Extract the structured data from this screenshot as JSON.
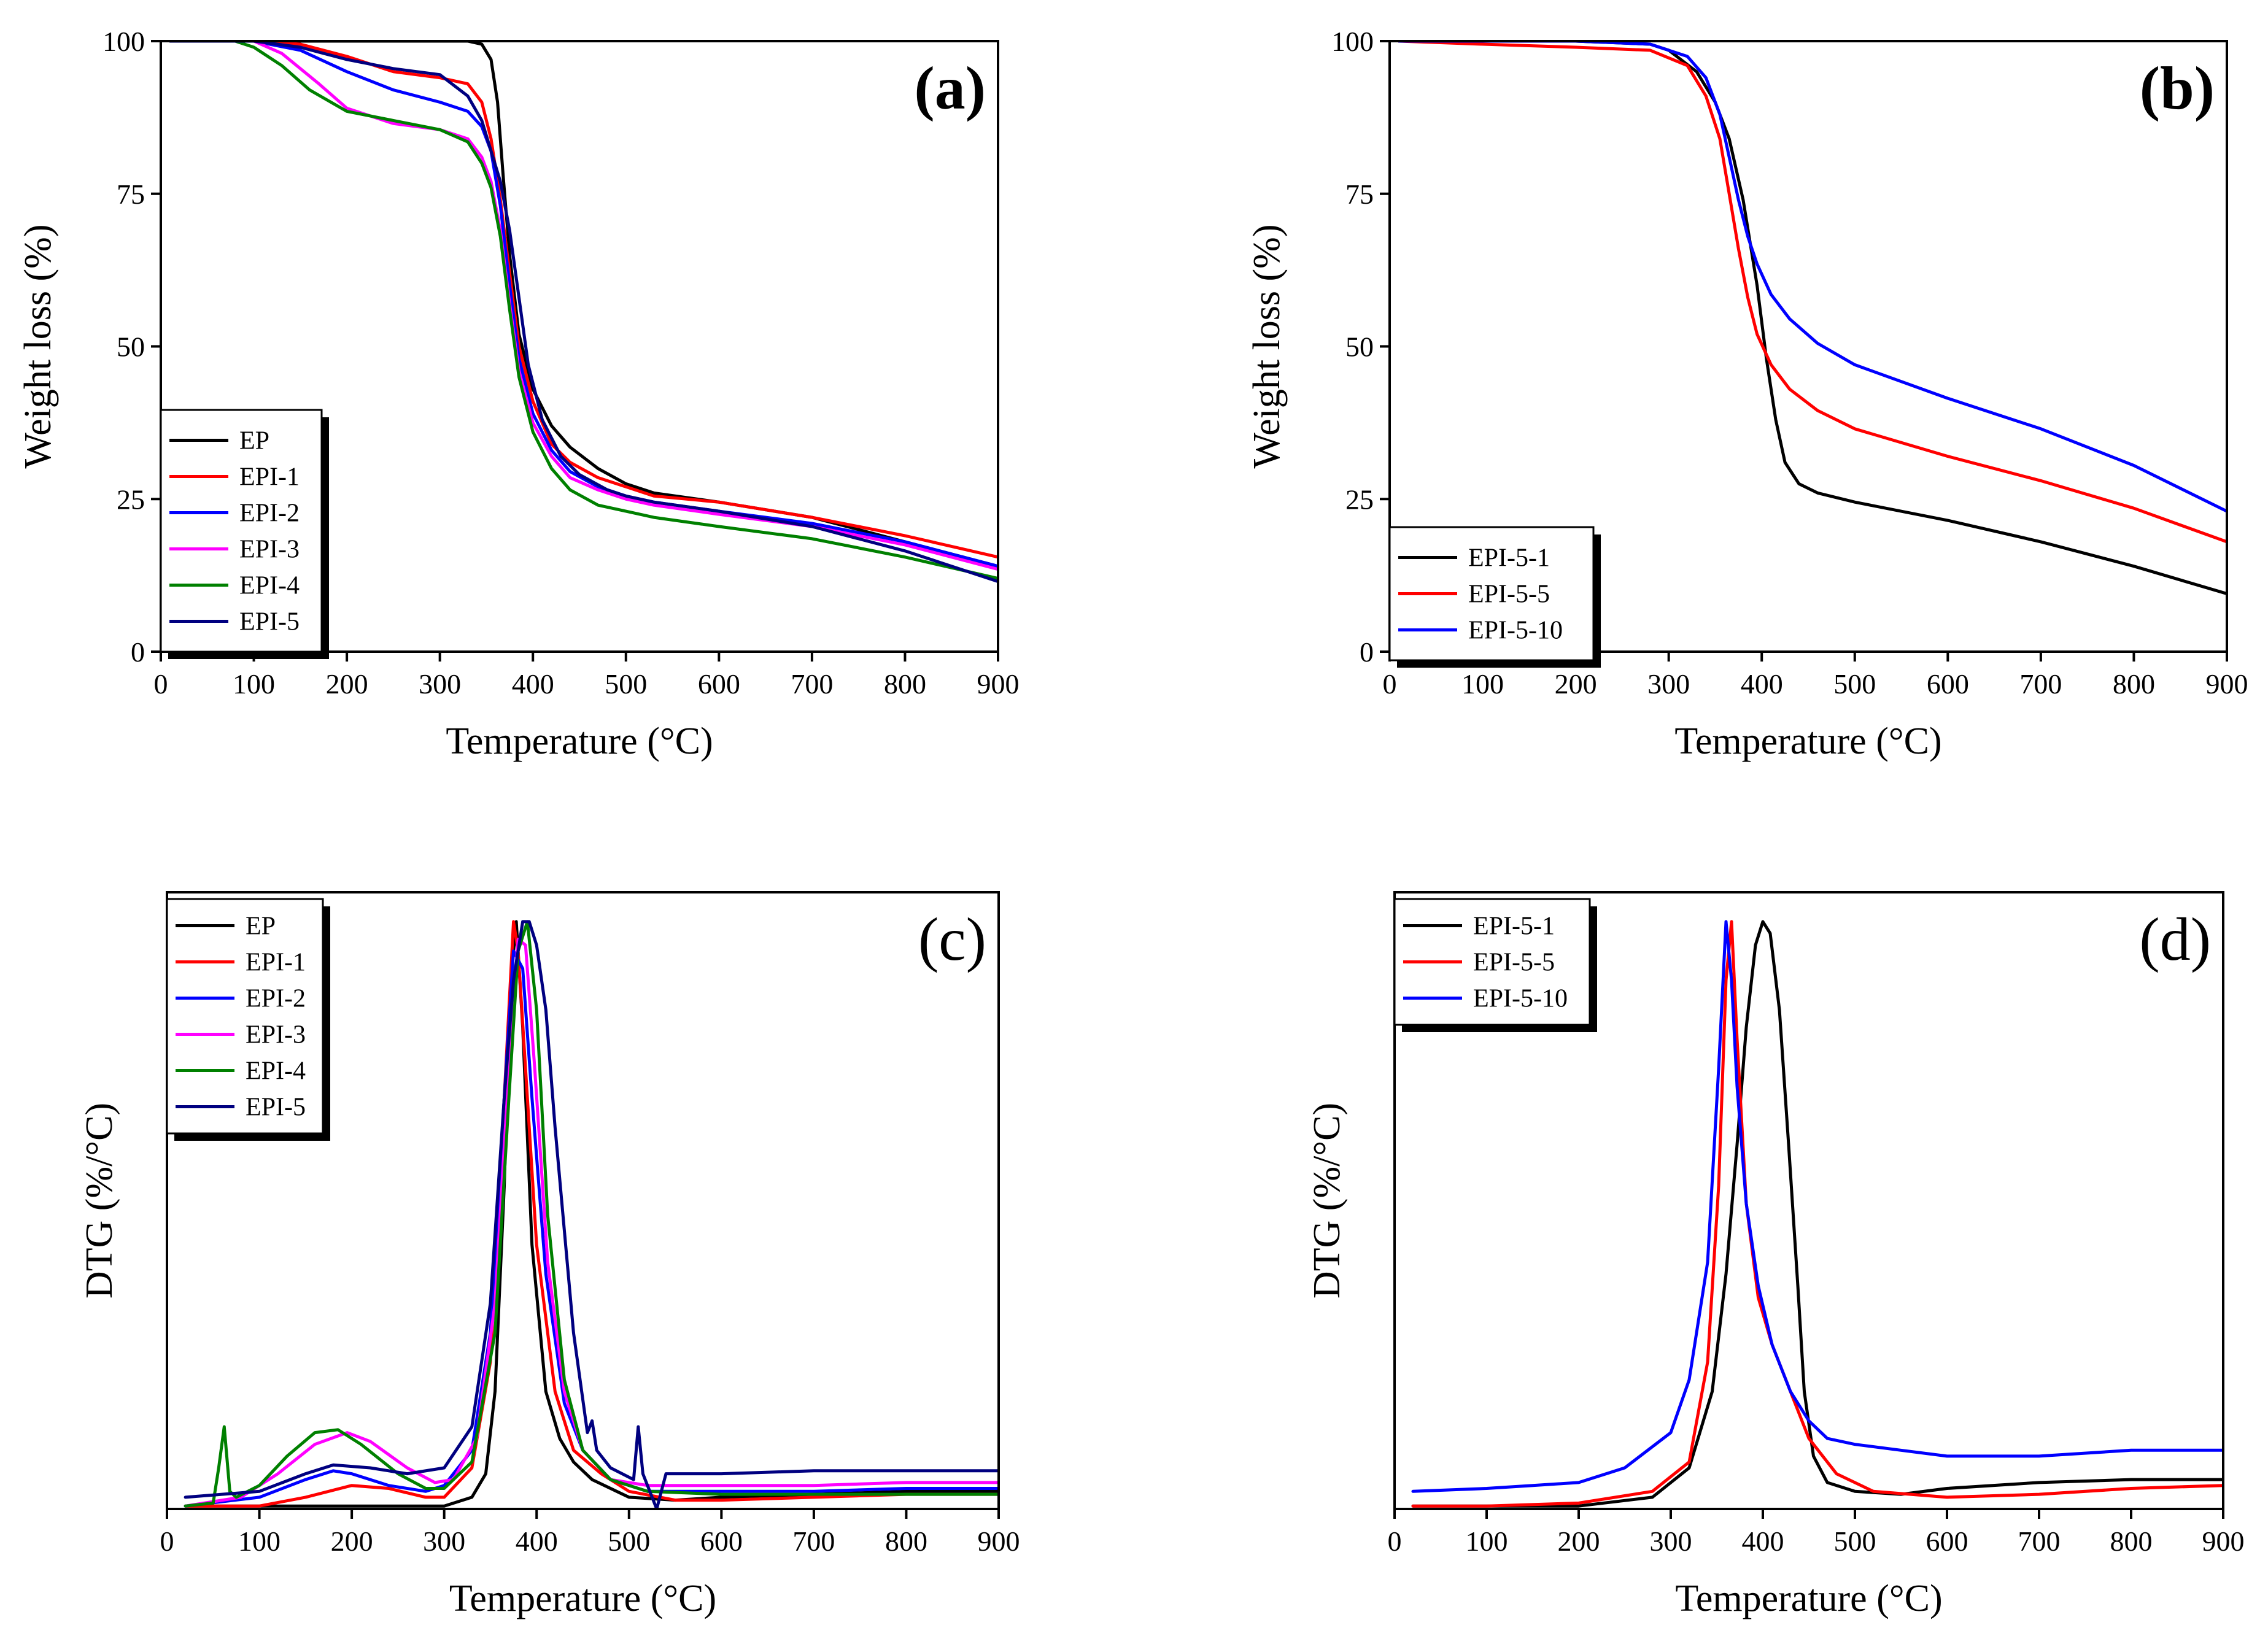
{
  "chart_data": [
    {
      "id": "a",
      "type": "line",
      "panel_label": "(a)",
      "title": "",
      "xlabel": "Temperature (°C)",
      "ylabel": "Weight loss (%)",
      "xlim": [
        0,
        900
      ],
      "ylim": [
        0,
        100
      ],
      "xticks": [
        0,
        100,
        200,
        300,
        400,
        500,
        600,
        700,
        800,
        900
      ],
      "yticks": [
        0,
        25,
        50,
        75,
        100
      ],
      "legend_position": "bottom-left",
      "series": [
        {
          "name": "EP",
          "color": "#000000",
          "x": [
            10,
            100,
            200,
            300,
            330,
            345,
            355,
            362,
            368,
            375,
            385,
            400,
            420,
            440,
            470,
            500,
            530,
            600,
            700,
            800,
            900
          ],
          "y": [
            100,
            100,
            100,
            100,
            100,
            99.5,
            97,
            90,
            78,
            65,
            52,
            43,
            37,
            33.5,
            30,
            27.5,
            26,
            24.5,
            22,
            18,
            14
          ]
        },
        {
          "name": "EPI-1",
          "color": "#ff0000",
          "x": [
            10,
            100,
            150,
            200,
            250,
            300,
            330,
            345,
            355,
            365,
            375,
            385,
            400,
            420,
            440,
            470,
            500,
            530,
            600,
            700,
            800,
            900
          ],
          "y": [
            100,
            100,
            99.5,
            97.5,
            95,
            94,
            93,
            90,
            84,
            74,
            62,
            50,
            41,
            34,
            31,
            28.5,
            27,
            25.5,
            24.5,
            22,
            19,
            15.5
          ]
        },
        {
          "name": "EPI-2",
          "color": "#0000ff",
          "x": [
            10,
            100,
            150,
            200,
            250,
            300,
            330,
            345,
            355,
            365,
            375,
            385,
            400,
            420,
            440,
            470,
            500,
            530,
            600,
            700,
            800,
            900
          ],
          "y": [
            100,
            100,
            98.5,
            95,
            92,
            90,
            88.5,
            86,
            82,
            73,
            60,
            48,
            39,
            33,
            29.5,
            27,
            25.5,
            24.5,
            23,
            21,
            18,
            14
          ]
        },
        {
          "name": "EPI-3",
          "color": "#ff00ff",
          "x": [
            10,
            100,
            130,
            170,
            200,
            250,
            300,
            330,
            345,
            355,
            365,
            375,
            385,
            400,
            420,
            440,
            470,
            500,
            530,
            600,
            700,
            800,
            900
          ],
          "y": [
            100,
            100,
            98,
            93,
            89,
            86.5,
            85.5,
            84,
            81,
            77,
            69,
            57,
            46,
            37.5,
            32,
            28.5,
            26.5,
            25,
            24,
            22.5,
            20.5,
            17.5,
            13.5
          ]
        },
        {
          "name": "EPI-4",
          "color": "#008000",
          "x": [
            10,
            80,
            100,
            130,
            160,
            200,
            250,
            300,
            330,
            345,
            355,
            365,
            375,
            385,
            400,
            420,
            440,
            470,
            500,
            530,
            600,
            700,
            800,
            900
          ],
          "y": [
            100,
            100,
            99,
            96,
            92,
            88.5,
            87,
            85.5,
            83.5,
            80,
            76,
            68,
            56,
            45,
            36,
            30,
            26.5,
            24,
            23,
            22,
            20.5,
            18.5,
            15.5,
            12
          ]
        },
        {
          "name": "EPI-5",
          "color": "#000080",
          "x": [
            10,
            100,
            150,
            200,
            250,
            300,
            330,
            345,
            355,
            365,
            375,
            385,
            395,
            410,
            430,
            450,
            480,
            500,
            530,
            600,
            700,
            800,
            900
          ],
          "y": [
            100,
            100,
            99,
            97,
            95.5,
            94.5,
            91,
            87,
            82,
            77,
            69,
            58,
            47,
            38,
            32,
            29,
            26.5,
            25.5,
            24.5,
            23,
            20.5,
            16.5,
            11.5
          ]
        }
      ]
    },
    {
      "id": "b",
      "type": "line",
      "panel_label": "(b)",
      "title": "",
      "xlabel": "Temperature (°C)",
      "ylabel": "Weight loss (%)",
      "xlim": [
        0,
        900
      ],
      "ylim": [
        0,
        100
      ],
      "xticks": [
        0,
        100,
        200,
        300,
        400,
        500,
        600,
        700,
        800,
        900
      ],
      "yticks": [
        0,
        25,
        50,
        75,
        100
      ],
      "legend_position": "bottom-left",
      "series": [
        {
          "name": "EPI-5-1",
          "color": "#000000",
          "x": [
            10,
            100,
            200,
            280,
            300,
            330,
            350,
            365,
            380,
            395,
            405,
            415,
            425,
            440,
            460,
            500,
            600,
            700,
            800,
            900
          ],
          "y": [
            100,
            100,
            100,
            99.5,
            98.5,
            95,
            90,
            84,
            74,
            60,
            48,
            38,
            31,
            27.5,
            26,
            24.5,
            21.5,
            18,
            14,
            9.5
          ]
        },
        {
          "name": "EPI-5-5",
          "color": "#ff0000",
          "x": [
            10,
            100,
            200,
            280,
            320,
            340,
            355,
            365,
            375,
            385,
            395,
            410,
            430,
            460,
            500,
            600,
            700,
            800,
            900
          ],
          "y": [
            100,
            99.5,
            99,
            98.5,
            96,
            91,
            84,
            75,
            66,
            58,
            52,
            47,
            43,
            39.5,
            36.5,
            32,
            28,
            23.5,
            18
          ]
        },
        {
          "name": "EPI-5-10",
          "color": "#0000ff",
          "x": [
            10,
            100,
            200,
            280,
            320,
            340,
            355,
            365,
            375,
            385,
            395,
            410,
            430,
            460,
            500,
            600,
            700,
            800,
            900
          ],
          "y": [
            100,
            100,
            100,
            99.5,
            97.5,
            94,
            88,
            81,
            74,
            68,
            63.5,
            58.5,
            54.5,
            50.5,
            47,
            41.5,
            36.5,
            30.5,
            23
          ]
        }
      ]
    },
    {
      "id": "c",
      "type": "line",
      "panel_label": "(c)",
      "title": "",
      "xlabel": "Temperature (°C)",
      "ylabel": "DTG (%/°C)",
      "xlim": [
        0,
        900
      ],
      "ylim": [
        0,
        1.05
      ],
      "xticks": [
        0,
        100,
        200,
        300,
        400,
        500,
        600,
        700,
        800,
        900
      ],
      "yticks": [],
      "legend_position": "top-left",
      "series": [
        {
          "name": "EP",
          "color": "#000000",
          "x": [
            20,
            100,
            200,
            300,
            330,
            345,
            355,
            365,
            372,
            378,
            385,
            395,
            410,
            425,
            440,
            460,
            500,
            550,
            600,
            700,
            800,
            900
          ],
          "y": [
            0.005,
            0.005,
            0.005,
            0.005,
            0.02,
            0.06,
            0.2,
            0.55,
            0.9,
            1.0,
            0.82,
            0.45,
            0.2,
            0.12,
            0.08,
            0.05,
            0.02,
            0.015,
            0.02,
            0.025,
            0.03,
            0.03
          ]
        },
        {
          "name": "EPI-1",
          "color": "#ff0000",
          "x": [
            20,
            100,
            150,
            200,
            240,
            280,
            300,
            330,
            350,
            365,
            375,
            380,
            390,
            400,
            420,
            440,
            470,
            500,
            550,
            600,
            700,
            800,
            900
          ],
          "y": [
            0.005,
            0.005,
            0.02,
            0.04,
            0.035,
            0.02,
            0.02,
            0.07,
            0.25,
            0.7,
            1.0,
            0.95,
            0.7,
            0.45,
            0.2,
            0.1,
            0.06,
            0.03,
            0.015,
            0.015,
            0.02,
            0.025,
            0.025
          ]
        },
        {
          "name": "EPI-2",
          "color": "#0000ff",
          "x": [
            20,
            100,
            150,
            180,
            200,
            240,
            280,
            300,
            330,
            350,
            365,
            375,
            385,
            395,
            410,
            430,
            450,
            480,
            520,
            600,
            700,
            800,
            900
          ],
          "y": [
            0.005,
            0.02,
            0.05,
            0.065,
            0.06,
            0.04,
            0.03,
            0.04,
            0.1,
            0.3,
            0.7,
            0.95,
            0.92,
            0.7,
            0.4,
            0.18,
            0.1,
            0.05,
            0.03,
            0.03,
            0.03,
            0.035,
            0.035
          ]
        },
        {
          "name": "EPI-3",
          "color": "#ff00ff",
          "x": [
            20,
            80,
            120,
            160,
            195,
            220,
            260,
            290,
            310,
            335,
            355,
            370,
            380,
            388,
            398,
            412,
            430,
            450,
            480,
            520,
            600,
            700,
            800,
            900
          ],
          "y": [
            0.005,
            0.02,
            0.06,
            0.11,
            0.13,
            0.115,
            0.07,
            0.045,
            0.05,
            0.12,
            0.35,
            0.75,
            0.97,
            0.96,
            0.75,
            0.42,
            0.2,
            0.1,
            0.05,
            0.04,
            0.04,
            0.04,
            0.045,
            0.045
          ]
        },
        {
          "name": "EPI-4",
          "color": "#008000",
          "x": [
            20,
            50,
            56,
            62,
            68,
            75,
            100,
            130,
            160,
            185,
            210,
            250,
            280,
            300,
            330,
            355,
            370,
            380,
            390,
            400,
            412,
            430,
            450,
            480,
            520,
            600,
            700,
            800,
            900
          ],
          "y": [
            0.005,
            0.01,
            0.07,
            0.14,
            0.03,
            0.02,
            0.04,
            0.09,
            0.13,
            0.135,
            0.11,
            0.06,
            0.035,
            0.035,
            0.08,
            0.3,
            0.7,
            0.95,
            1.0,
            0.85,
            0.5,
            0.22,
            0.1,
            0.05,
            0.03,
            0.025,
            0.025,
            0.025,
            0.025
          ]
        },
        {
          "name": "EPI-5",
          "color": "#000080",
          "x": [
            20,
            100,
            150,
            180,
            220,
            260,
            300,
            330,
            350,
            365,
            375,
            385,
            392,
            400,
            410,
            420,
            440,
            455,
            460,
            465,
            480,
            505,
            510,
            515,
            525,
            530,
            540,
            600,
            700,
            800,
            900
          ],
          "y": [
            0.02,
            0.03,
            0.06,
            0.075,
            0.07,
            0.06,
            0.07,
            0.14,
            0.35,
            0.7,
            0.9,
            1.0,
            1.0,
            0.96,
            0.85,
            0.65,
            0.3,
            0.13,
            0.15,
            0.1,
            0.07,
            0.05,
            0.14,
            0.06,
            0.02,
            0.0,
            0.06,
            0.06,
            0.065,
            0.065,
            0.065
          ]
        }
      ]
    },
    {
      "id": "d",
      "type": "line",
      "panel_label": "(d)",
      "title": "",
      "xlabel": "Temperature (°C)",
      "ylabel": "DTG (%/°C)",
      "xlim": [
        0,
        900
      ],
      "ylim": [
        0,
        1.05
      ],
      "xticks": [
        0,
        100,
        200,
        300,
        400,
        500,
        600,
        700,
        800,
        900
      ],
      "yticks": [],
      "legend_position": "top-left",
      "series": [
        {
          "name": "EPI-5-1",
          "color": "#000000",
          "x": [
            20,
            100,
            200,
            280,
            320,
            345,
            360,
            372,
            382,
            392,
            400,
            408,
            418,
            428,
            438,
            445,
            455,
            470,
            500,
            550,
            600,
            700,
            800,
            900
          ],
          "y": [
            0.005,
            0.005,
            0.005,
            0.02,
            0.07,
            0.2,
            0.4,
            0.62,
            0.82,
            0.96,
            1.0,
            0.98,
            0.85,
            0.62,
            0.38,
            0.2,
            0.09,
            0.045,
            0.03,
            0.025,
            0.035,
            0.045,
            0.05,
            0.05
          ]
        },
        {
          "name": "EPI-5-5",
          "color": "#ff0000",
          "x": [
            20,
            100,
            200,
            280,
            320,
            340,
            352,
            360,
            366,
            372,
            382,
            395,
            410,
            430,
            450,
            480,
            520,
            600,
            700,
            800,
            900
          ],
          "y": [
            0.005,
            0.005,
            0.01,
            0.03,
            0.08,
            0.25,
            0.55,
            0.9,
            1.0,
            0.8,
            0.52,
            0.36,
            0.28,
            0.2,
            0.12,
            0.06,
            0.03,
            0.02,
            0.025,
            0.035,
            0.04
          ]
        },
        {
          "name": "EPI-5-10",
          "color": "#0000ff",
          "x": [
            20,
            100,
            150,
            200,
            250,
            300,
            320,
            340,
            352,
            360,
            366,
            372,
            382,
            395,
            410,
            430,
            450,
            470,
            500,
            550,
            600,
            700,
            800,
            850,
            900
          ],
          "y": [
            0.03,
            0.035,
            0.04,
            0.045,
            0.07,
            0.13,
            0.22,
            0.42,
            0.75,
            1.0,
            0.9,
            0.72,
            0.52,
            0.38,
            0.28,
            0.2,
            0.15,
            0.12,
            0.11,
            0.1,
            0.09,
            0.09,
            0.1,
            0.1,
            0.1
          ]
        }
      ]
    }
  ]
}
